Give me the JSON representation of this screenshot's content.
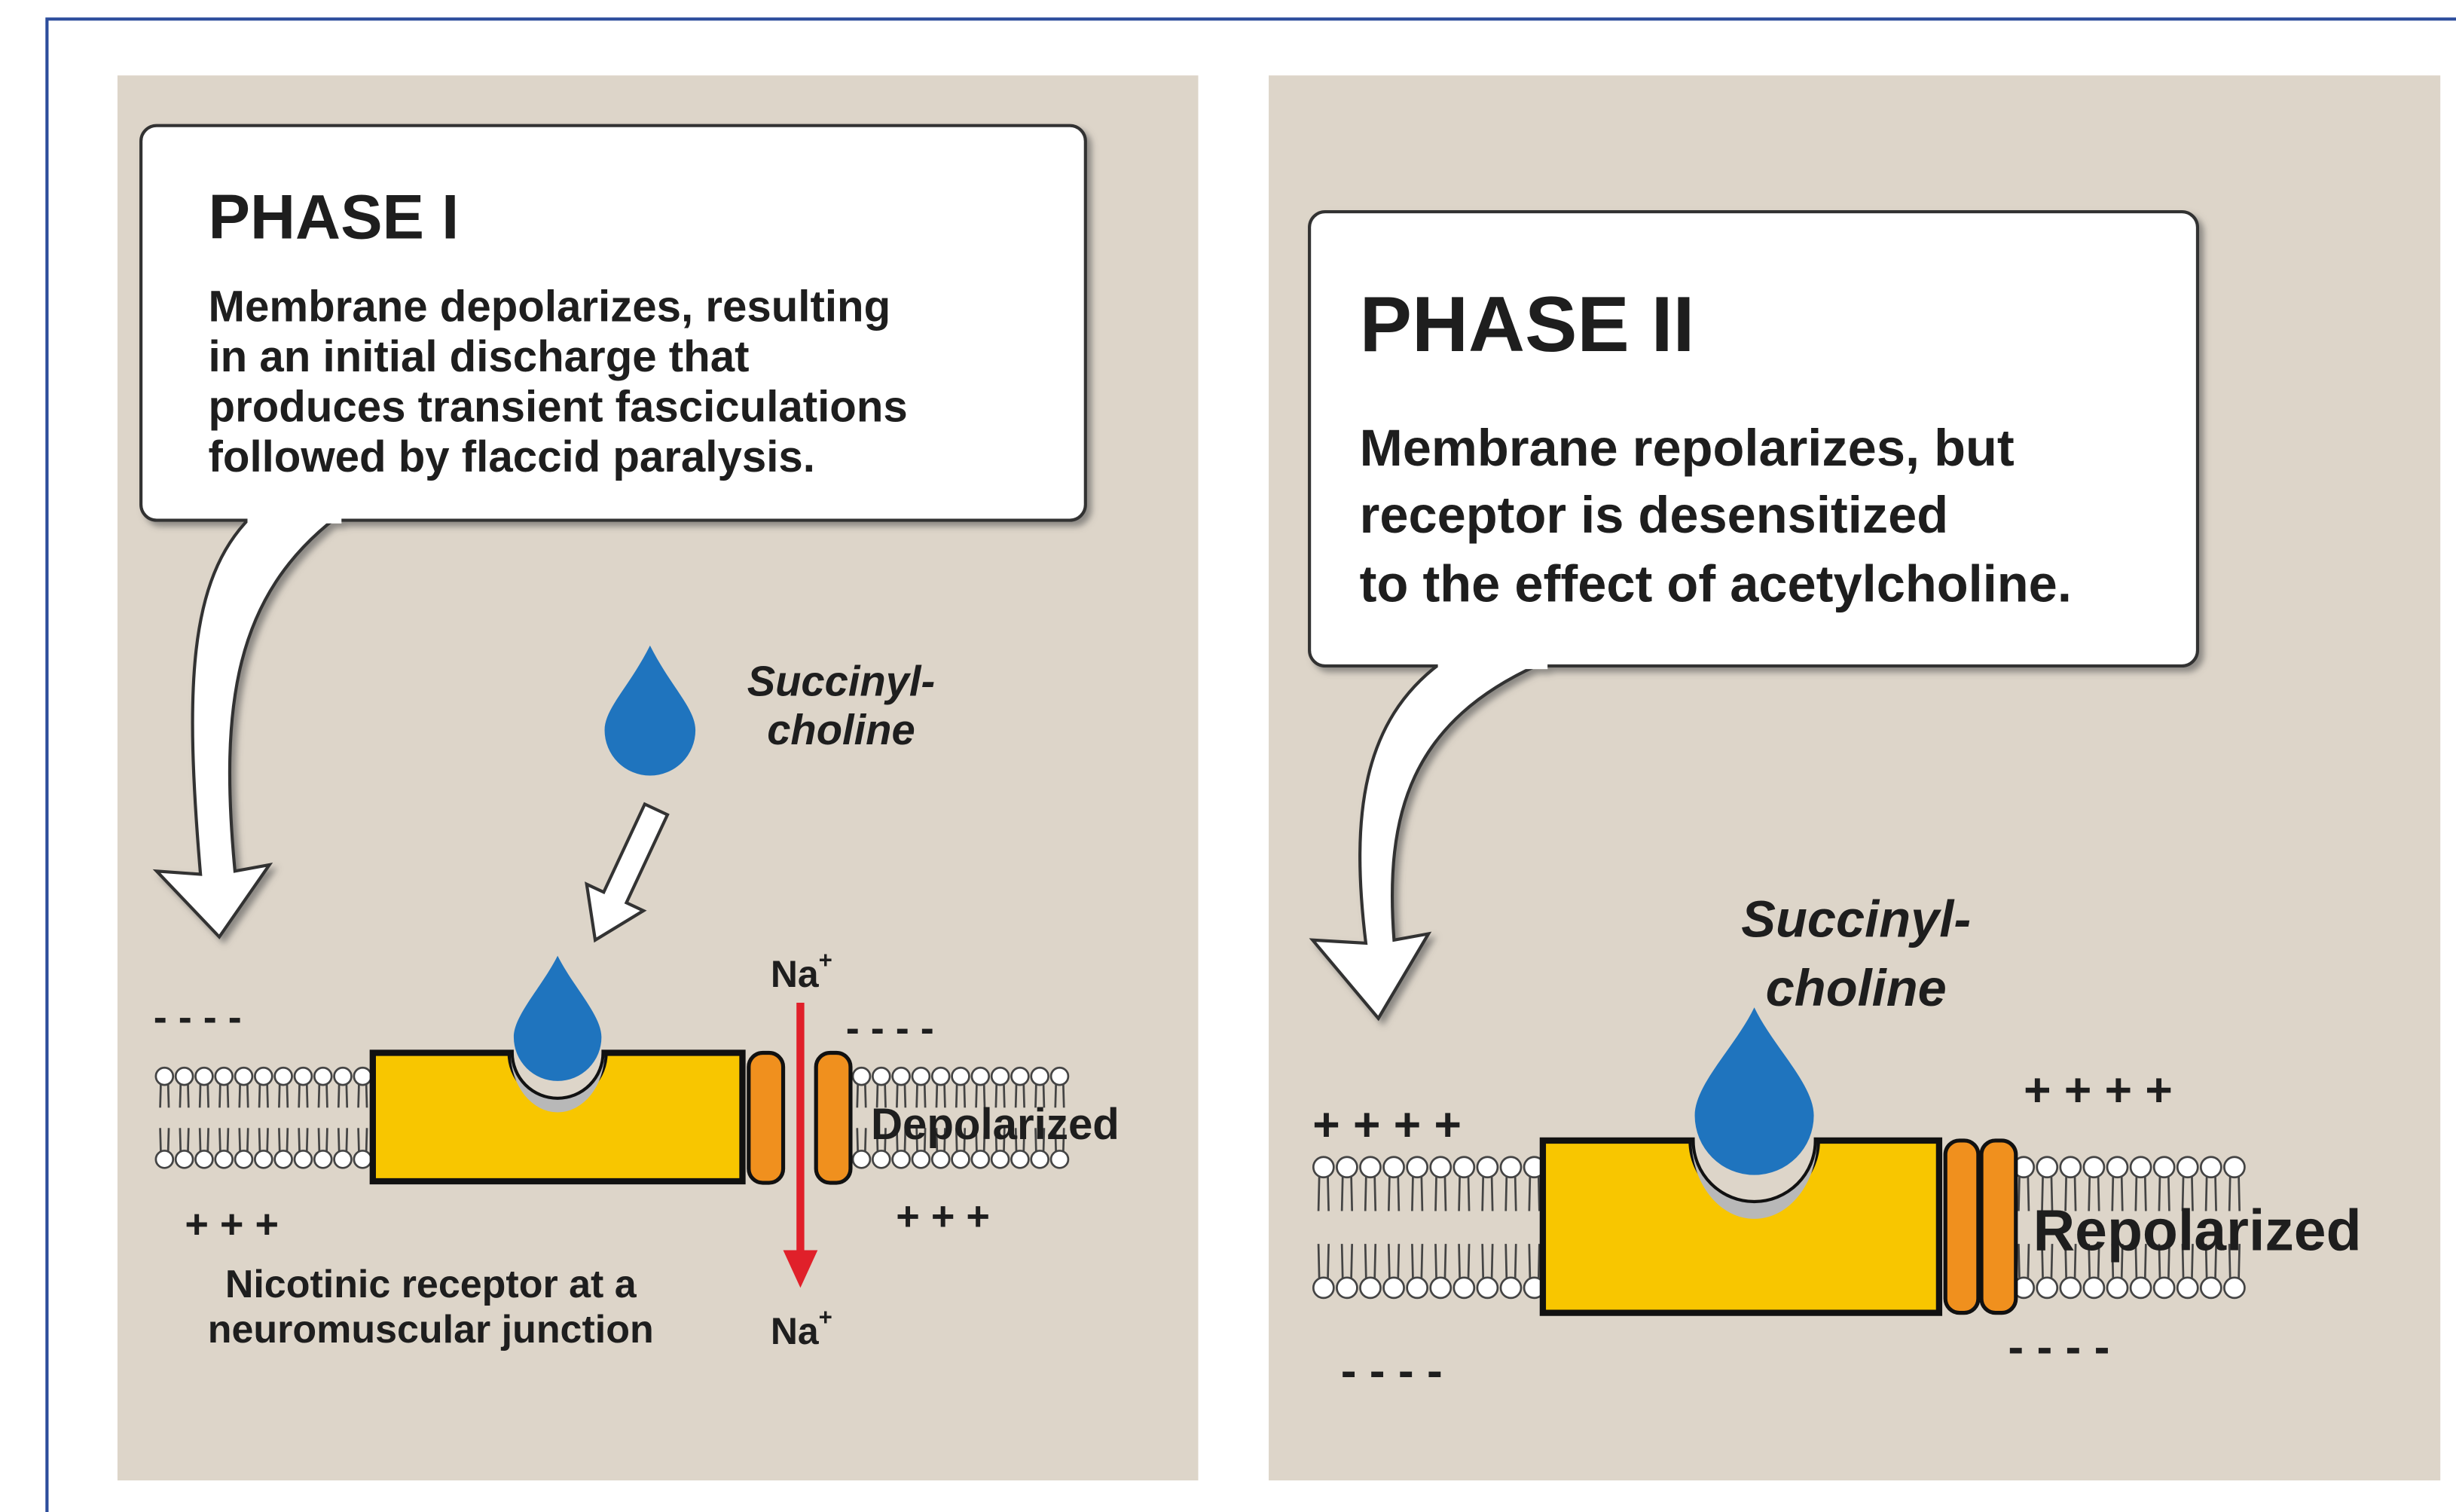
{
  "panels": [
    {
      "title": "PHASE I",
      "description": [
        "Membrane depolarizes, resulting",
        "in an initial discharge that",
        "produces transient fasciculations",
        "followed by flaccid paralysis."
      ],
      "drug": [
        "Succinyl-",
        "choline"
      ],
      "ion": {
        "symbol": "Na",
        "charge": "+"
      },
      "charges": {
        "top_left": "- - - -",
        "top_right": "- - - -",
        "bottom_left": "+ + +",
        "bottom_right": "+ + +"
      },
      "state": "Depolarized",
      "caption": [
        "Nicotinic receptor at a",
        "neuromuscular junction"
      ]
    },
    {
      "title": "PHASE II",
      "description": [
        "Membrane repolarizes, but",
        "receptor is desensitized",
        "to the effect of acetylcholine."
      ],
      "drug": [
        "Succinyl-",
        "choline"
      ],
      "charges": {
        "top_left": "+ + + +",
        "top_right": "+ + + +",
        "bottom_left": "- - - -",
        "bottom_right": "- - - -"
      },
      "state": "Repolarized"
    }
  ]
}
